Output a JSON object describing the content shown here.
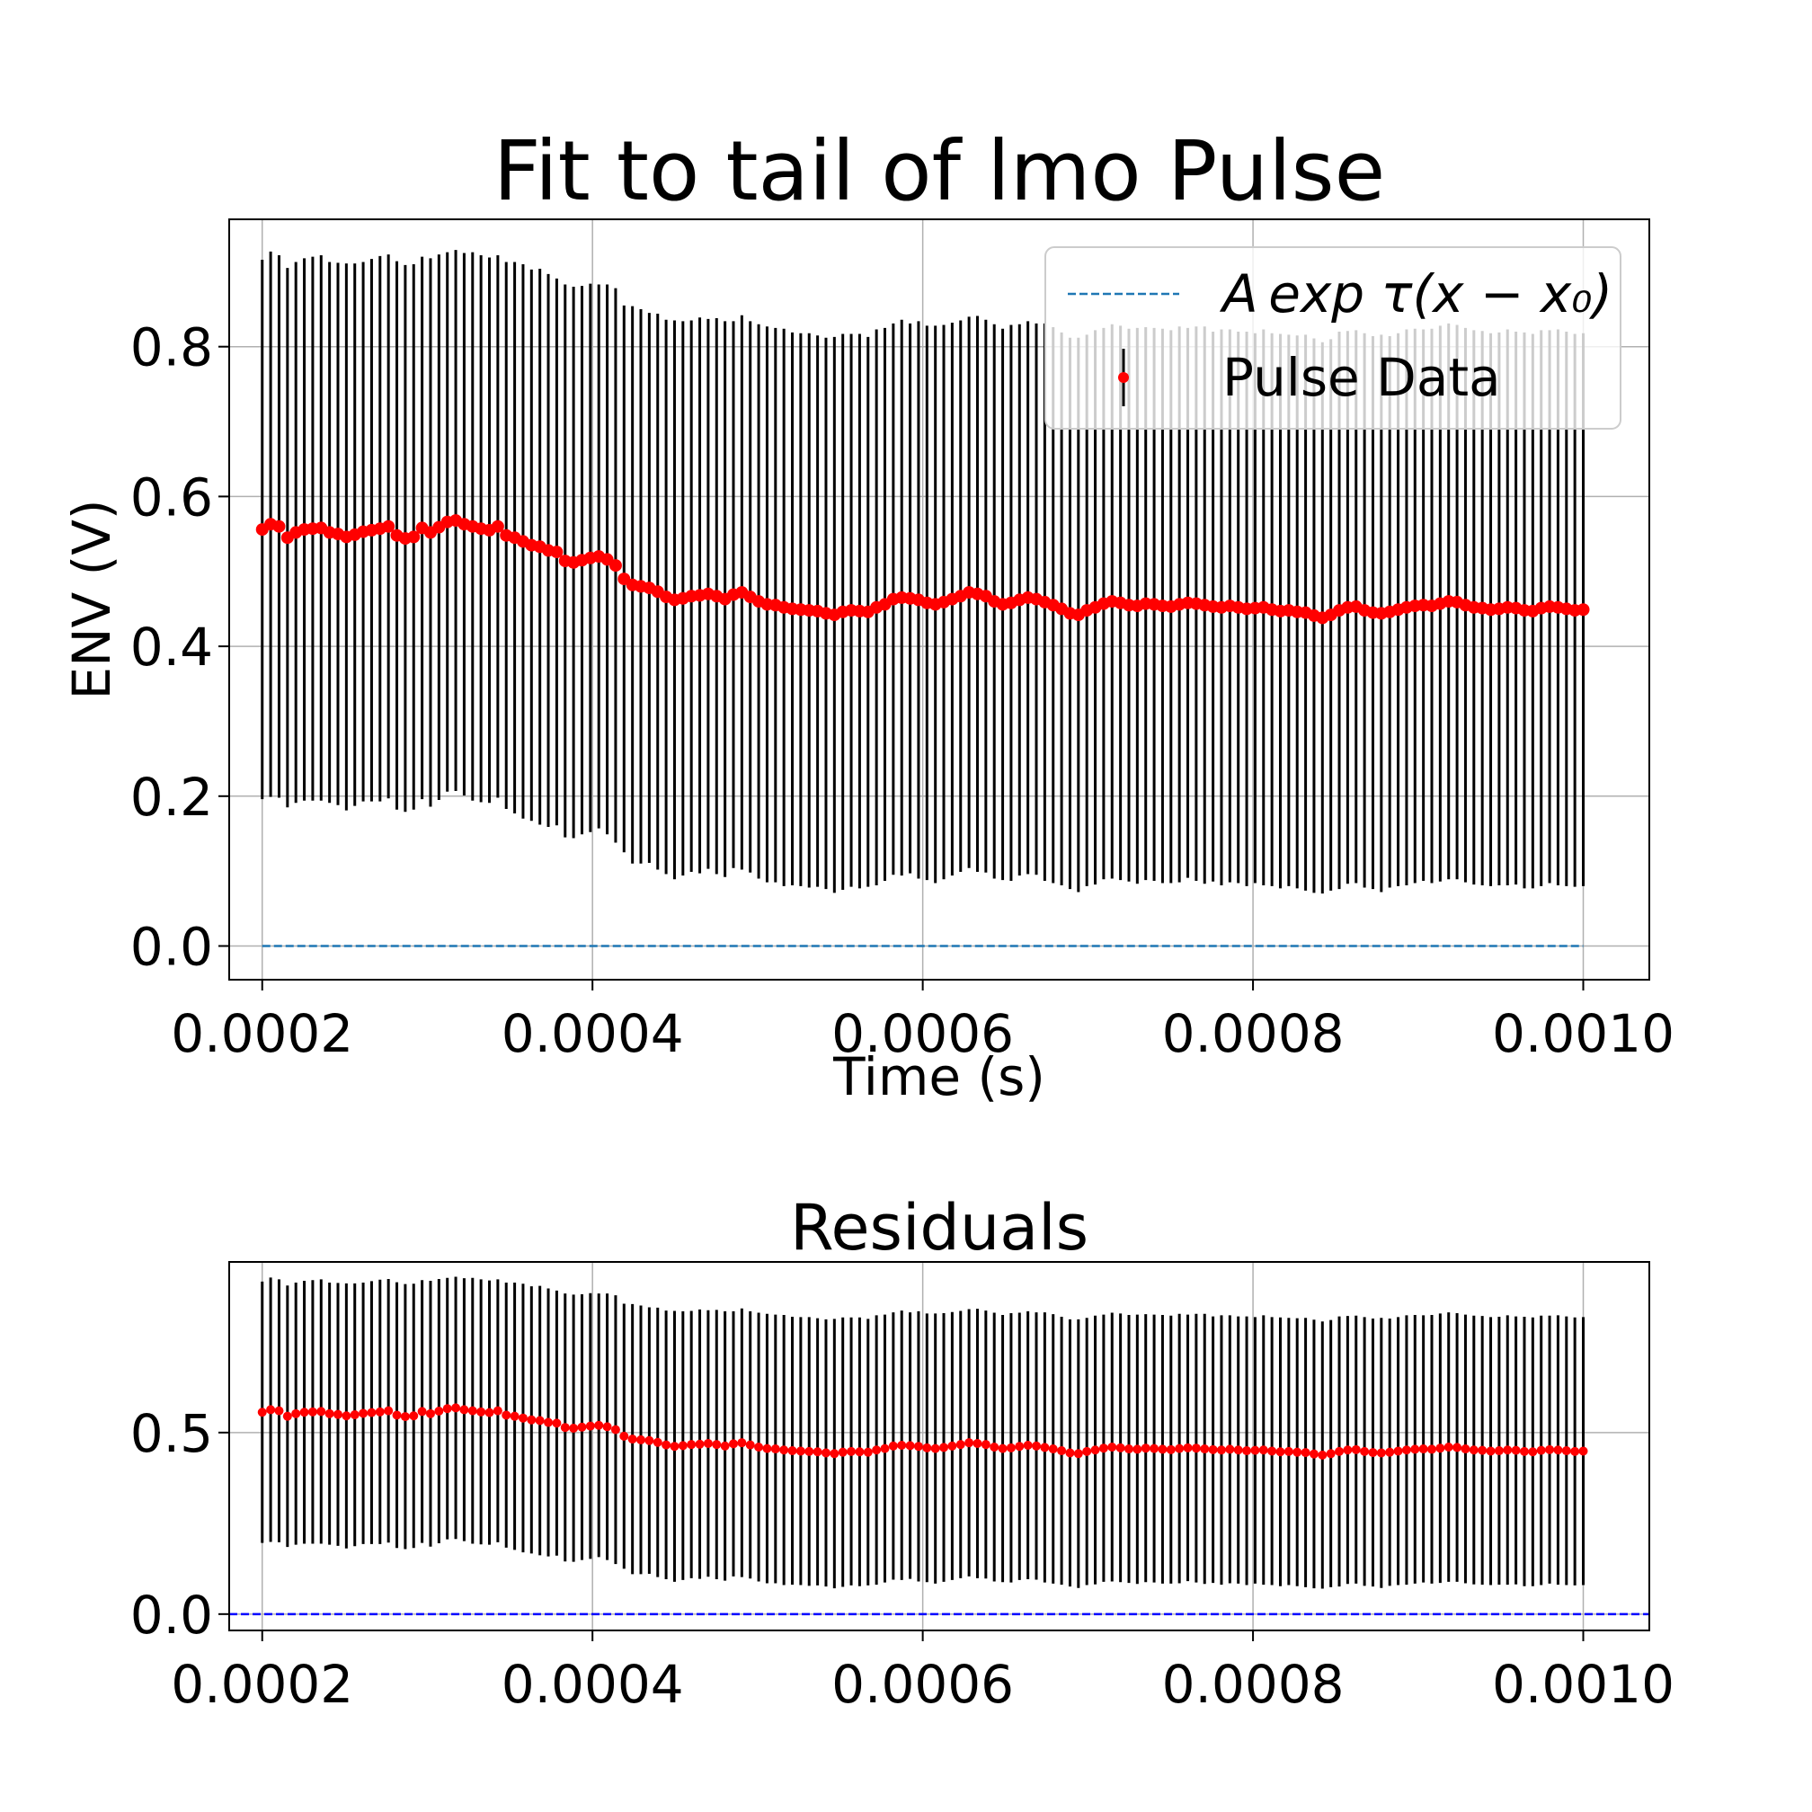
{
  "chart_data": [
    {
      "type": "scatter",
      "title": "Fit to tail of lmo Pulse",
      "xlabel": "Time (s)",
      "ylabel": "ENV (V)",
      "xlim": [
        0.00018,
        0.00104
      ],
      "ylim": [
        -0.045,
        0.97
      ],
      "xticks": [
        "0.0002",
        "0.0004",
        "0.0006",
        "0.0008",
        "0.0010"
      ],
      "xtick_values": [
        0.0002,
        0.0004,
        0.0006,
        0.0008,
        0.001
      ],
      "yticks": [
        "0.0",
        "0.2",
        "0.4",
        "0.6",
        "0.8"
      ],
      "ytick_values": [
        0.0,
        0.2,
        0.4,
        0.6,
        0.8
      ],
      "grid": true,
      "legend_position": "top-right",
      "colors": {
        "fit": "#1f77b4",
        "points": "#ff0000",
        "errorbars": "#000000"
      },
      "legend": [
        "A exp τ(x − x₀)",
        "Pulse Data"
      ],
      "fit_line": {
        "x": [
          0.0002,
          0.001
        ],
        "y": [
          0.0,
          0.0
        ]
      },
      "series": [
        {
          "name": "Pulse Data",
          "x_start": 0.0002,
          "x_end": 0.001,
          "y": [
            0.556,
            0.563,
            0.56,
            0.545,
            0.552,
            0.556,
            0.557,
            0.558,
            0.552,
            0.55,
            0.546,
            0.549,
            0.553,
            0.555,
            0.557,
            0.56,
            0.548,
            0.544,
            0.546,
            0.558,
            0.552,
            0.559,
            0.566,
            0.568,
            0.563,
            0.56,
            0.557,
            0.555,
            0.56,
            0.548,
            0.545,
            0.54,
            0.535,
            0.533,
            0.528,
            0.526,
            0.514,
            0.512,
            0.515,
            0.518,
            0.52,
            0.516,
            0.508,
            0.49,
            0.482,
            0.48,
            0.478,
            0.473,
            0.466,
            0.462,
            0.464,
            0.467,
            0.468,
            0.47,
            0.467,
            0.463,
            0.469,
            0.472,
            0.466,
            0.46,
            0.456,
            0.455,
            0.452,
            0.45,
            0.449,
            0.448,
            0.447,
            0.444,
            0.442,
            0.446,
            0.448,
            0.447,
            0.446,
            0.452,
            0.456,
            0.463,
            0.465,
            0.464,
            0.462,
            0.458,
            0.456,
            0.459,
            0.463,
            0.467,
            0.472,
            0.47,
            0.467,
            0.46,
            0.456,
            0.458,
            0.462,
            0.465,
            0.463,
            0.459,
            0.455,
            0.45,
            0.444,
            0.442,
            0.448,
            0.452,
            0.457,
            0.46,
            0.458,
            0.455,
            0.454,
            0.457,
            0.456,
            0.454,
            0.453,
            0.456,
            0.458,
            0.457,
            0.455,
            0.453,
            0.452,
            0.454,
            0.452,
            0.45,
            0.451,
            0.452,
            0.449,
            0.447,
            0.448,
            0.446,
            0.445,
            0.441,
            0.438,
            0.442,
            0.448,
            0.452,
            0.453,
            0.448,
            0.445,
            0.444,
            0.446,
            0.449,
            0.452,
            0.454,
            0.455,
            0.454,
            0.457,
            0.46,
            0.459,
            0.455,
            0.452,
            0.451,
            0.449,
            0.45,
            0.452,
            0.451,
            0.448,
            0.447,
            0.451,
            0.453,
            0.452,
            0.45,
            0.448,
            0.449
          ],
          "err": [
            0.36,
            0.364,
            0.362,
            0.36,
            0.361,
            0.362,
            0.363,
            0.364,
            0.361,
            0.362,
            0.365,
            0.362,
            0.36,
            0.362,
            0.364,
            0.363,
            0.366,
            0.365,
            0.364,
            0.362,
            0.366,
            0.364,
            0.36,
            0.361,
            0.362,
            0.366,
            0.365,
            0.364,
            0.362,
            0.365,
            0.368,
            0.37,
            0.368,
            0.371,
            0.369,
            0.365,
            0.369,
            0.368,
            0.366,
            0.366,
            0.363,
            0.367,
            0.37,
            0.365,
            0.372,
            0.37,
            0.367,
            0.371,
            0.37,
            0.373,
            0.37,
            0.368,
            0.371,
            0.367,
            0.371,
            0.371,
            0.365,
            0.37,
            0.368,
            0.37,
            0.371,
            0.37,
            0.372,
            0.369,
            0.369,
            0.37,
            0.368,
            0.368,
            0.371,
            0.371,
            0.369,
            0.37,
            0.367,
            0.371,
            0.369,
            0.368,
            0.371,
            0.367,
            0.372,
            0.37,
            0.372,
            0.37,
            0.369,
            0.368,
            0.368,
            0.371,
            0.369,
            0.37,
            0.368,
            0.371,
            0.368,
            0.369,
            0.368,
            0.372,
            0.371,
            0.369,
            0.368,
            0.37,
            0.368,
            0.37,
            0.368,
            0.37,
            0.37,
            0.369,
            0.371,
            0.369,
            0.369,
            0.37,
            0.369,
            0.371,
            0.367,
            0.37,
            0.372,
            0.367,
            0.371,
            0.369,
            0.368,
            0.37,
            0.367,
            0.371,
            0.369,
            0.37,
            0.368,
            0.369,
            0.371,
            0.37,
            0.368,
            0.368,
            0.372,
            0.369,
            0.369,
            0.37,
            0.369,
            0.372,
            0.368,
            0.369,
            0.371,
            0.37,
            0.368,
            0.37,
            0.371,
            0.371,
            0.37,
            0.37,
            0.37,
            0.37,
            0.369,
            0.369,
            0.371,
            0.369,
            0.371,
            0.37,
            0.371,
            0.369,
            0.371,
            0.37,
            0.369,
            0.369
          ]
        }
      ]
    },
    {
      "type": "scatter",
      "title": "Residuals",
      "xlim": [
        0.00018,
        0.00104
      ],
      "ylim": [
        -0.045,
        0.97
      ],
      "xticks": [
        "0.0002",
        "0.0004",
        "0.0006",
        "0.0008",
        "0.0010"
      ],
      "xtick_values": [
        0.0002,
        0.0004,
        0.0006,
        0.0008,
        0.001
      ],
      "yticks": [
        "0.0",
        "0.5"
      ],
      "ytick_values": [
        0.0,
        0.5
      ],
      "grid": true,
      "colors": {
        "zero_line": "#0000ff",
        "points": "#ff0000",
        "errorbars": "#000000"
      },
      "zero_line": {
        "y": 0.0
      },
      "series_ref": "same values as the Pulse Data series above"
    }
  ]
}
